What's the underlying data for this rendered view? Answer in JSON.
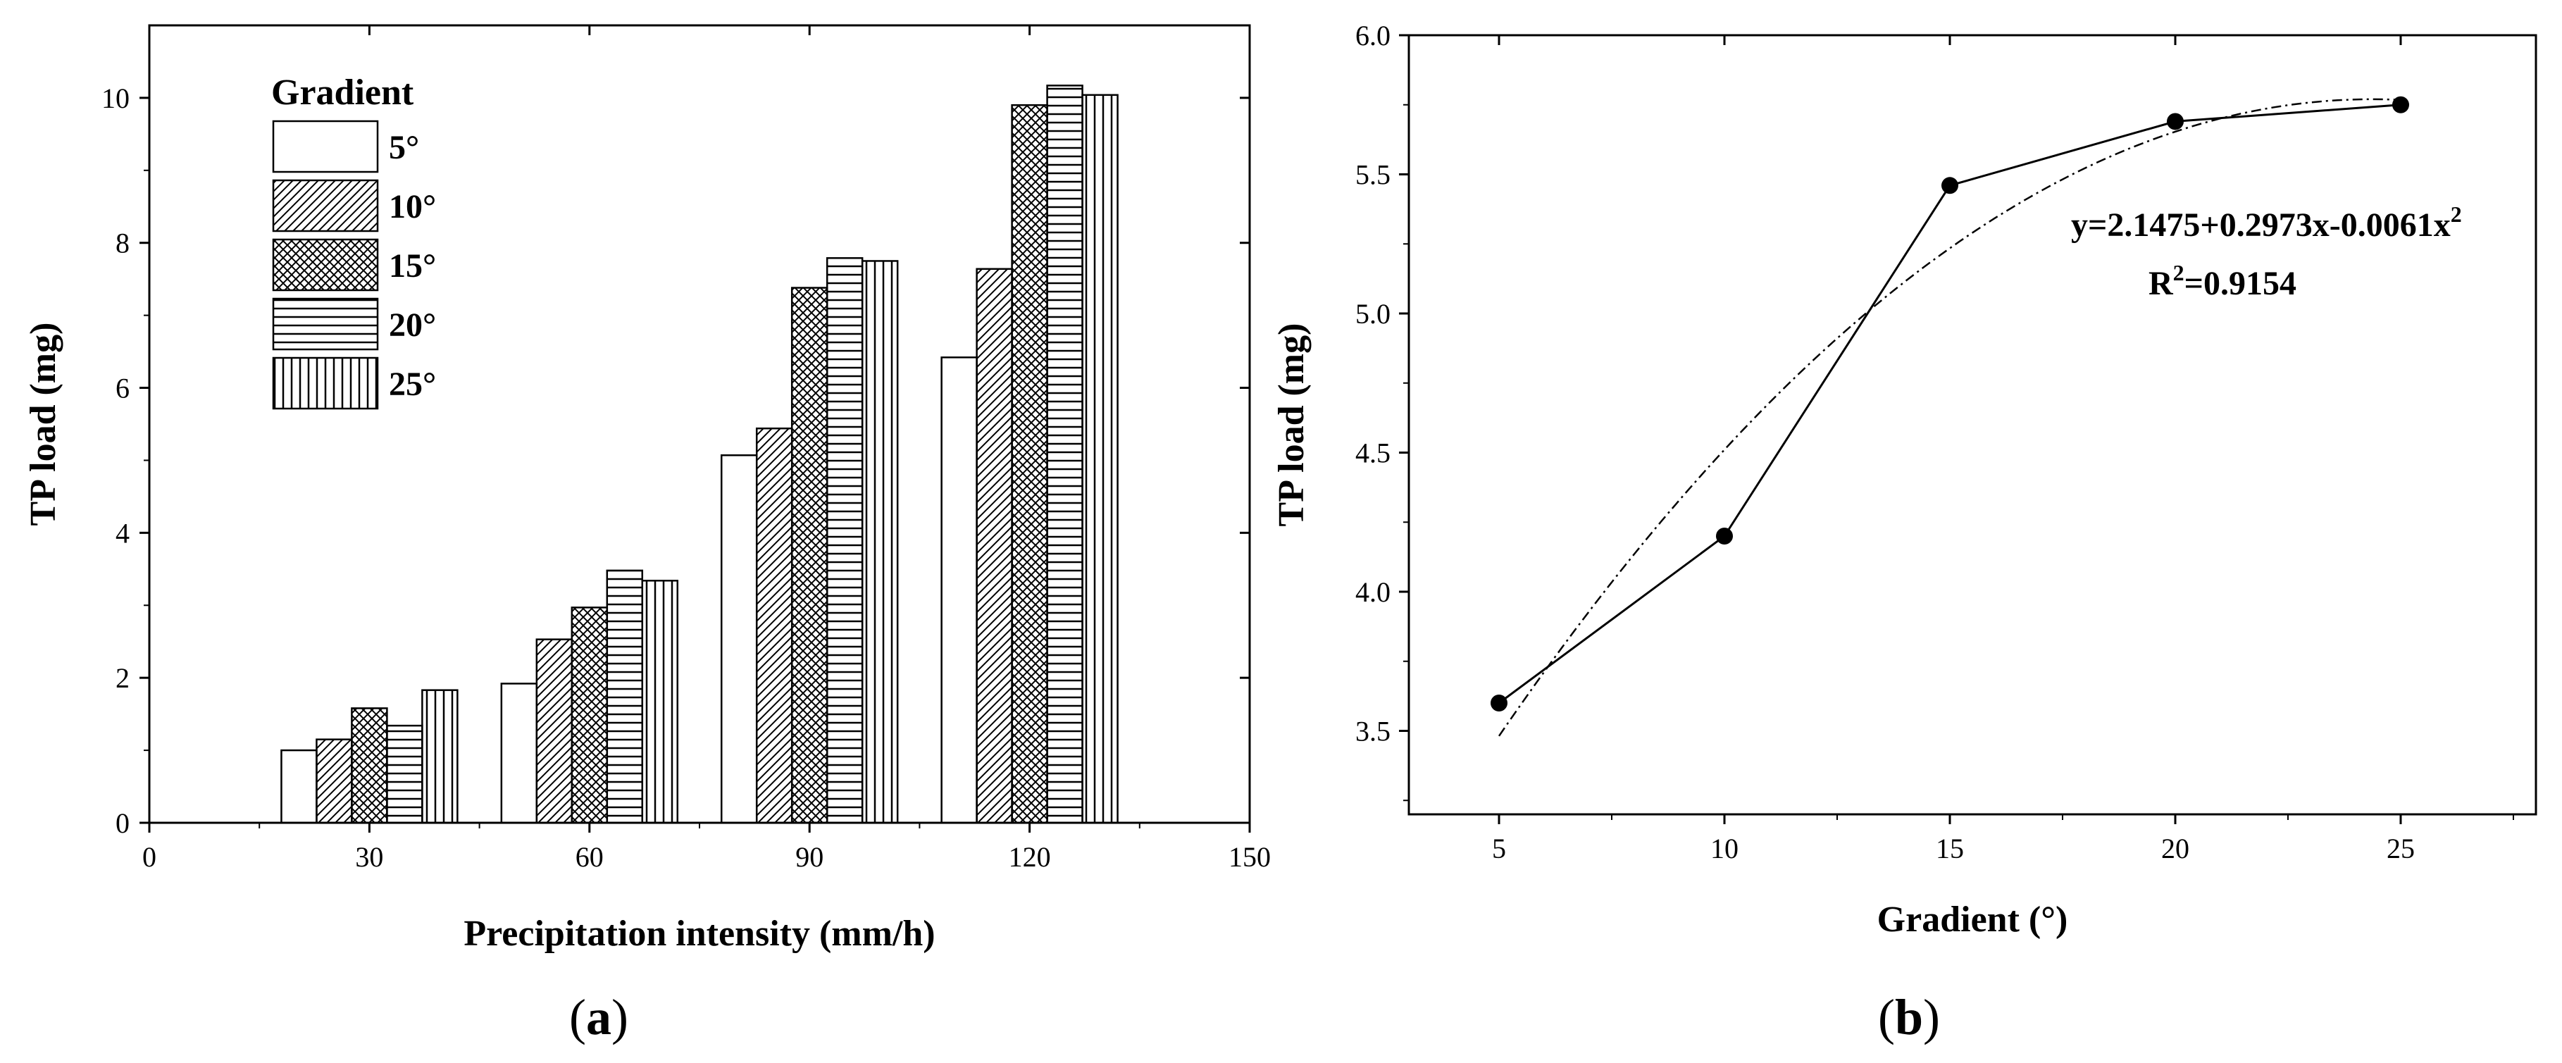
{
  "chart_data": [
    {
      "type": "bar",
      "panel_label": "a",
      "xlabel": "Precipitation intensity (mm/h)",
      "ylabel": "TP load (mg)",
      "xlim": [
        0,
        150
      ],
      "ylim": [
        0,
        11
      ],
      "xticks": [
        0,
        30,
        60,
        90,
        120,
        150
      ],
      "yticks": [
        0,
        2,
        4,
        6,
        8,
        10
      ],
      "categories": [
        30,
        60,
        90,
        120
      ],
      "bar_group_span": 24,
      "legend": {
        "title": "Gradient",
        "position": "top-left"
      },
      "series": [
        {
          "name": "5°",
          "pattern": "none",
          "values": [
            1.0,
            1.92,
            5.07,
            6.42
          ]
        },
        {
          "name": "10°",
          "pattern": "diagonal",
          "values": [
            1.15,
            2.53,
            5.44,
            7.64
          ]
        },
        {
          "name": "15°",
          "pattern": "crosshatch",
          "values": [
            1.58,
            2.97,
            7.38,
            9.9
          ]
        },
        {
          "name": "20°",
          "pattern": "horizontal",
          "values": [
            1.34,
            3.48,
            7.79,
            10.17
          ]
        },
        {
          "name": "25°",
          "pattern": "vertical",
          "values": [
            1.83,
            3.34,
            7.75,
            10.04
          ]
        }
      ]
    },
    {
      "type": "line",
      "panel_label": "b",
      "xlabel": "Gradient (°)",
      "ylabel": "TP load (mg)",
      "xlim": [
        3,
        28
      ],
      "ylim": [
        3.2,
        6.0
      ],
      "xticks": [
        5,
        10,
        15,
        20,
        25
      ],
      "yticks": [
        3.5,
        4.0,
        4.5,
        5.0,
        5.5,
        6.0
      ],
      "ytick_labels": [
        "3.5",
        "4.0",
        "4.5",
        "5.0",
        "5.5",
        "6.0"
      ],
      "x": [
        5,
        10,
        15,
        20,
        25
      ],
      "series": [
        {
          "name": "TP load",
          "values": [
            3.6,
            4.2,
            5.46,
            5.69,
            5.75
          ]
        }
      ],
      "fit": {
        "a": 2.1475,
        "b": 0.2973,
        "c": -0.0061,
        "x_from": 5,
        "x_to": 25
      },
      "annotation": {
        "equation_prefix": "y=2.1475+0.2973x-0.0061x",
        "equation_sup": "2",
        "r2_prefix": "R",
        "r2_sup": "2",
        "r2_suffix": "=0.9154"
      }
    }
  ]
}
